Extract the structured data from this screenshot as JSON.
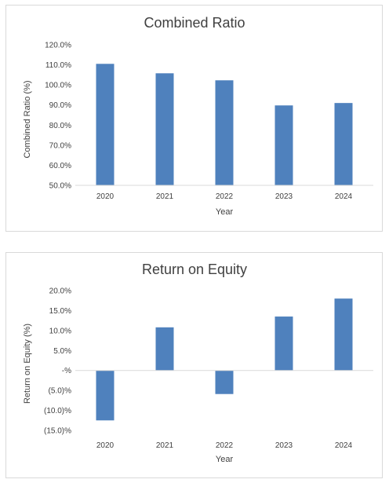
{
  "chart_data": [
    {
      "type": "bar",
      "title": "Combined Ratio",
      "xlabel": "Year",
      "ylabel": "Combined Ratio (%)",
      "categories": [
        "2020",
        "2021",
        "2022",
        "2023",
        "2024"
      ],
      "values": [
        110.5,
        105.8,
        102.3,
        89.8,
        91.0
      ],
      "ylim": [
        50,
        120
      ],
      "y_ticks": [
        {
          "value": 120,
          "label": "120.0%"
        },
        {
          "value": 110,
          "label": "110.0%"
        },
        {
          "value": 100,
          "label": "100.0%"
        },
        {
          "value": 90,
          "label": "90.0%"
        },
        {
          "value": 80,
          "label": "80.0%"
        },
        {
          "value": 70,
          "label": "70.0%"
        },
        {
          "value": 60,
          "label": "60.0%"
        },
        {
          "value": 50,
          "label": "50.0%"
        }
      ],
      "bar_color": "#4F81BD",
      "grid": false,
      "legend": "none"
    },
    {
      "type": "bar",
      "title": "Return on Equity",
      "xlabel": "Year",
      "ylabel": "Return on Equity (%)",
      "categories": [
        "2020",
        "2021",
        "2022",
        "2023",
        "2024"
      ],
      "values": [
        -12.5,
        10.8,
        -5.9,
        13.5,
        18.0
      ],
      "ylim": [
        -15,
        20
      ],
      "y_ticks": [
        {
          "value": 20,
          "label": "20.0%"
        },
        {
          "value": 15,
          "label": "15.0%"
        },
        {
          "value": 10,
          "label": "10.0%"
        },
        {
          "value": 5,
          "label": "5.0%"
        },
        {
          "value": 0,
          "label": "-%"
        },
        {
          "value": -5,
          "label": "(5.0)%"
        },
        {
          "value": -10,
          "label": "(10.0)%"
        },
        {
          "value": -15,
          "label": "(15.0)%"
        }
      ],
      "bar_color": "#4F81BD",
      "grid": false,
      "legend": "none"
    }
  ]
}
